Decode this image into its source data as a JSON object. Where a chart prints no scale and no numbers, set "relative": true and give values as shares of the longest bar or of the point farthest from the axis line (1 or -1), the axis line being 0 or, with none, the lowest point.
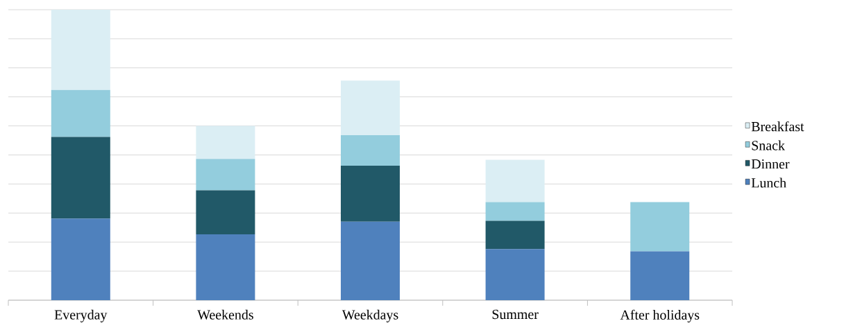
{
  "chart_data": {
    "type": "bar",
    "stacked": true,
    "relative": true,
    "grid": "y",
    "legend": "right",
    "categories": [
      "Everyday",
      "Weekends",
      "Weekdays",
      "Summer",
      "After holidays"
    ],
    "series": [
      {
        "name": "Lunch",
        "color": "#4f81bd",
        "values": [
          0.281,
          0.227,
          0.27,
          0.176,
          0.168
        ]
      },
      {
        "name": "Dinner",
        "color": "#215968",
        "values": [
          0.281,
          0.151,
          0.193,
          0.097,
          0
        ]
      },
      {
        "name": "Snack",
        "color": "#93cddd",
        "values": [
          0.162,
          0.108,
          0.105,
          0.065,
          0.17
        ]
      },
      {
        "name": "Breakfast",
        "color": "#dbeef4",
        "values": [
          0.276,
          0.114,
          0.188,
          0.145,
          0
        ]
      }
    ]
  }
}
